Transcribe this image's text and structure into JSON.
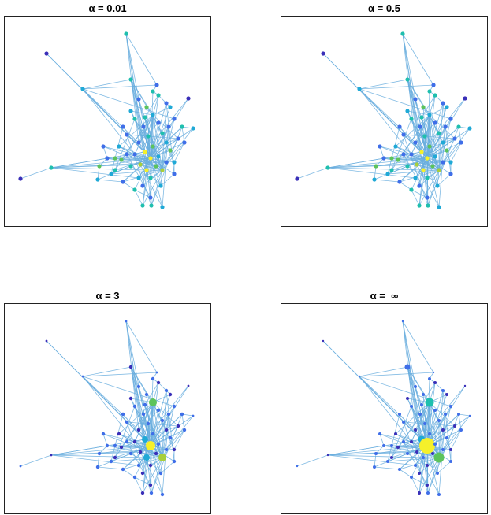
{
  "panels": [
    {
      "title": "α = 0.01",
      "mode": "uniform"
    },
    {
      "title": "α = 0.5",
      "mode": "uniform"
    },
    {
      "title": "α = 3",
      "mode": "mid"
    },
    {
      "title": "α =  ∞",
      "mode": "extreme"
    }
  ],
  "colors": {
    "edge": "#6aaede",
    "dark_blue": "#3a2fb8",
    "blue": "#3f6ee8",
    "cyan": "#1fa9d6",
    "teal": "#1fbfae",
    "green": "#5cc35c",
    "lime": "#a8cf3a",
    "yellow": "#f5f02a"
  }
}
